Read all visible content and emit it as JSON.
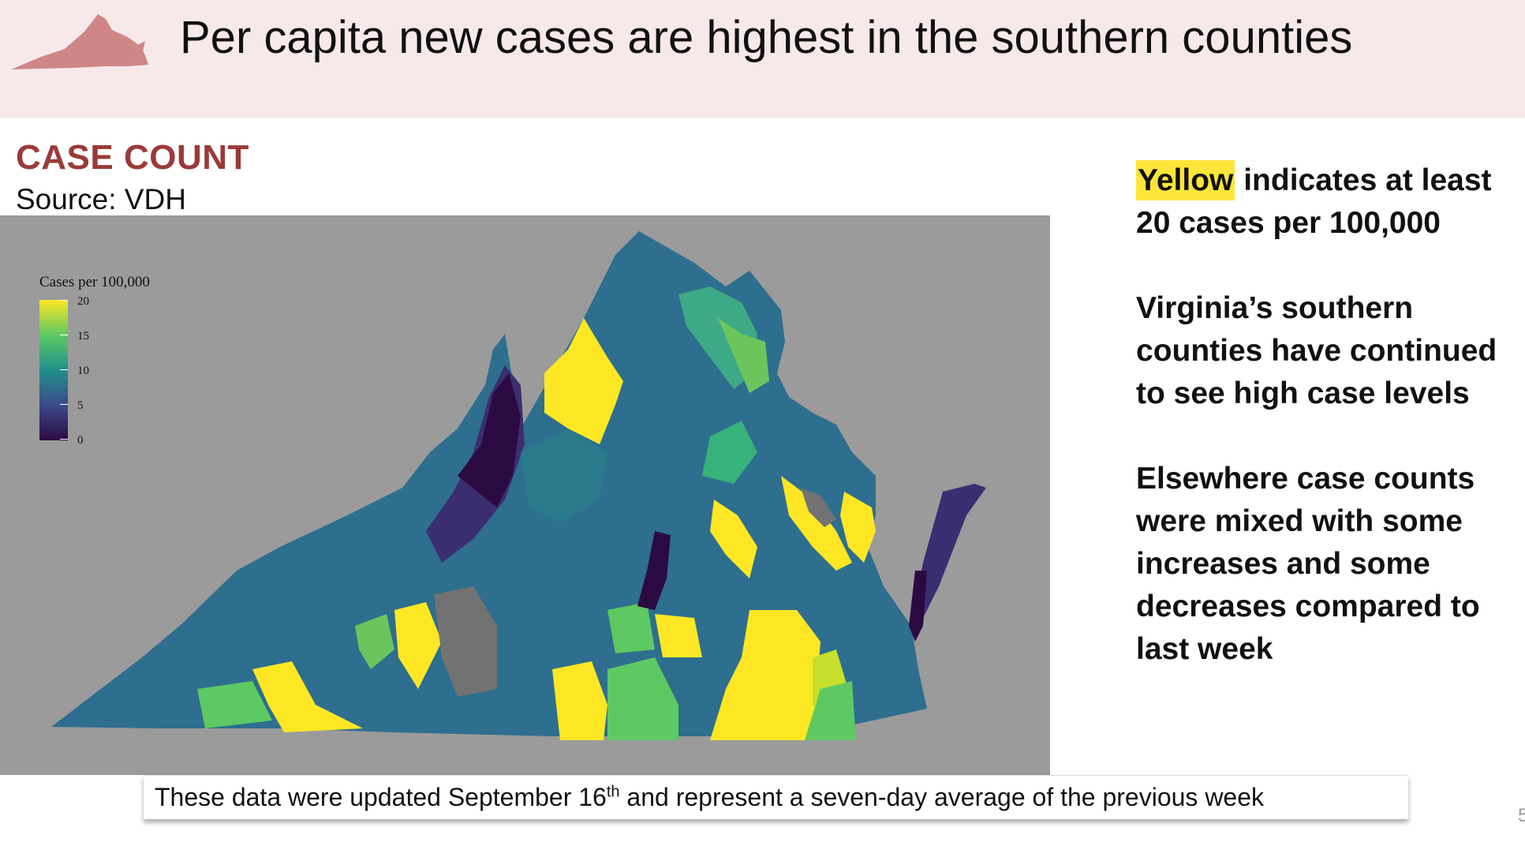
{
  "header": {
    "title": "Per capita new cases are highest in the southern counties",
    "logo_icon": "virginia-state-silhouette-icon",
    "background_color": "#f7e9ea"
  },
  "section": {
    "heading": "CASE COUNT",
    "source": "Source: VDH"
  },
  "map": {
    "legend": {
      "title": "Cases per 100,000",
      "ticks": [
        "20",
        "15",
        "10",
        "5",
        "0"
      ],
      "scale": "viridis",
      "min": 0,
      "max": 20
    },
    "colors": {
      "background": "#9b9b9b",
      "no_data": "#727272",
      "low": "#2b0a42",
      "high": "#fde725"
    }
  },
  "notes": {
    "n1_highlight": "Yellow",
    "n1_rest": " indicates at least 20 cases per 100,000",
    "n2": "Virginia’s southern counties have continued to see high case levels",
    "n3": "Elsewhere case counts were mixed with some increases and some decreases compared to last week"
  },
  "footer": {
    "text_before": "These data were updated September 16",
    "superscript": "th",
    "text_after": " and represent a seven-day average of the previous week"
  },
  "page_number": "5"
}
